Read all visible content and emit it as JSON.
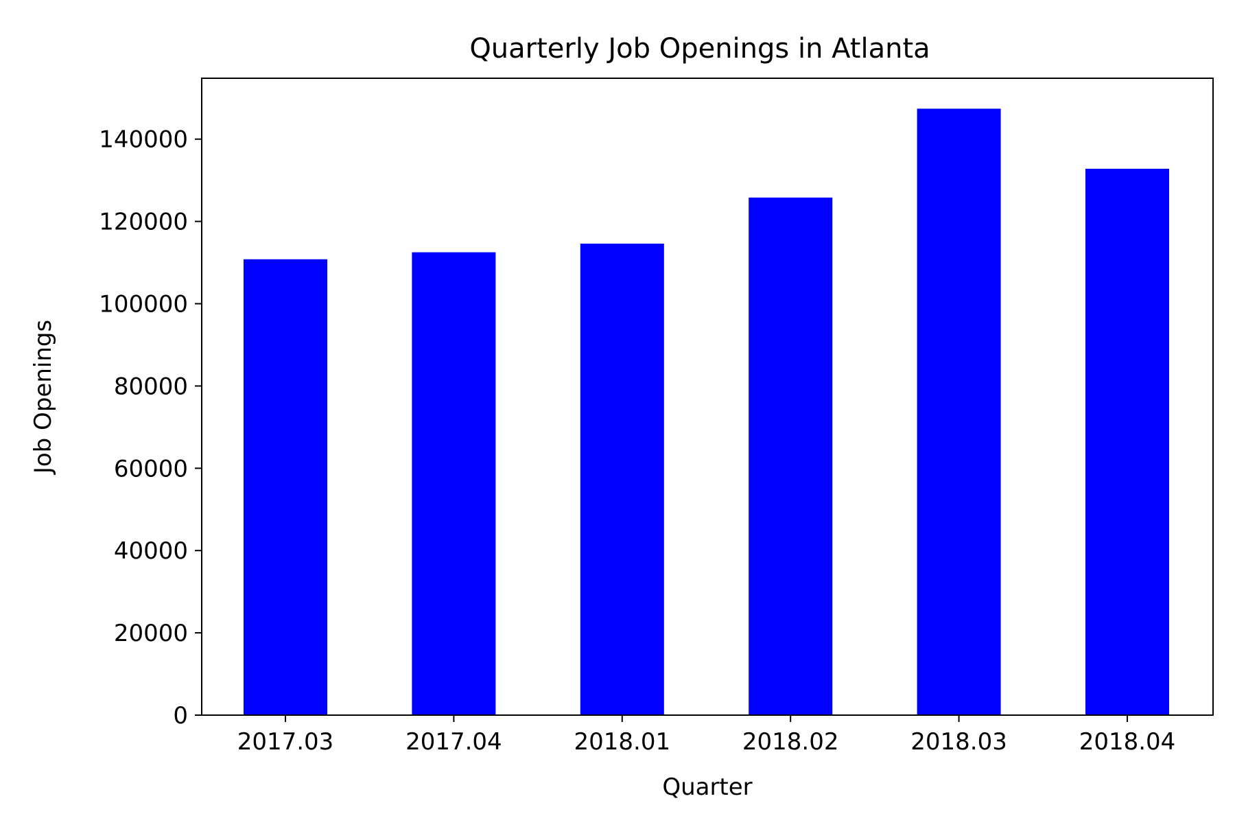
{
  "chart_data": {
    "type": "bar",
    "title": "Quarterly Job Openings in Atlanta",
    "xlabel": "Quarter",
    "ylabel": "Job Openings",
    "categories": [
      "2017.03",
      "2017.04",
      "2018.01",
      "2018.02",
      "2018.03",
      "2018.04"
    ],
    "values": [
      110800,
      112500,
      114600,
      125800,
      147400,
      132800
    ],
    "ylim": [
      0,
      154800
    ],
    "yticks": [
      0,
      20000,
      40000,
      60000,
      80000,
      100000,
      120000,
      140000
    ],
    "ytick_labels": [
      "0",
      "20000",
      "40000",
      "60000",
      "80000",
      "100000",
      "120000",
      "140000"
    ],
    "grid": false,
    "legend": "none",
    "colors": {
      "bar": "#0000ff",
      "axes": "#000000",
      "background": "#ffffff"
    }
  }
}
